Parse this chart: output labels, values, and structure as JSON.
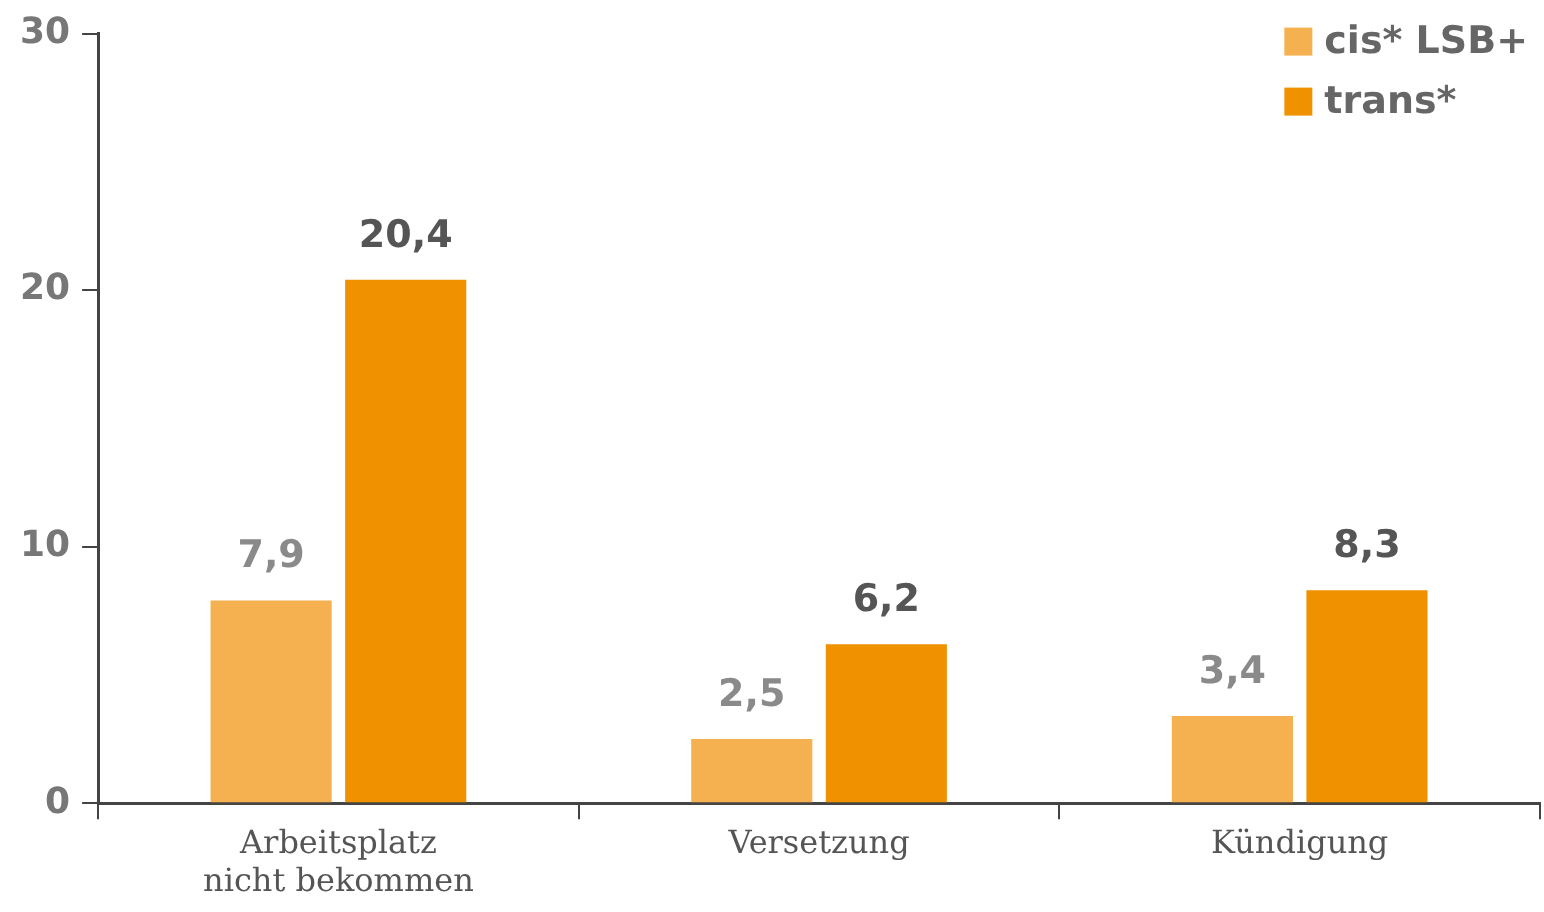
{
  "chart_data": {
    "type": "bar",
    "categories": [
      "Arbeitsplatz\nnicht bekommen",
      "Versetzung",
      "Kündigung"
    ],
    "series": [
      {
        "name": "cis* LSB+",
        "color": "#f5b04f",
        "values": [
          7.9,
          2.5,
          3.4
        ],
        "value_labels": [
          "7,9",
          "2,5",
          "3,4"
        ]
      },
      {
        "name": "trans*",
        "color": "#f09100",
        "values": [
          20.4,
          6.2,
          8.3
        ],
        "value_labels": [
          "20,4",
          "6,2",
          "8,3"
        ]
      }
    ],
    "ylim": [
      0,
      30
    ],
    "yticks": [
      0,
      10,
      20,
      30
    ],
    "grid": false,
    "legend": "top right"
  }
}
